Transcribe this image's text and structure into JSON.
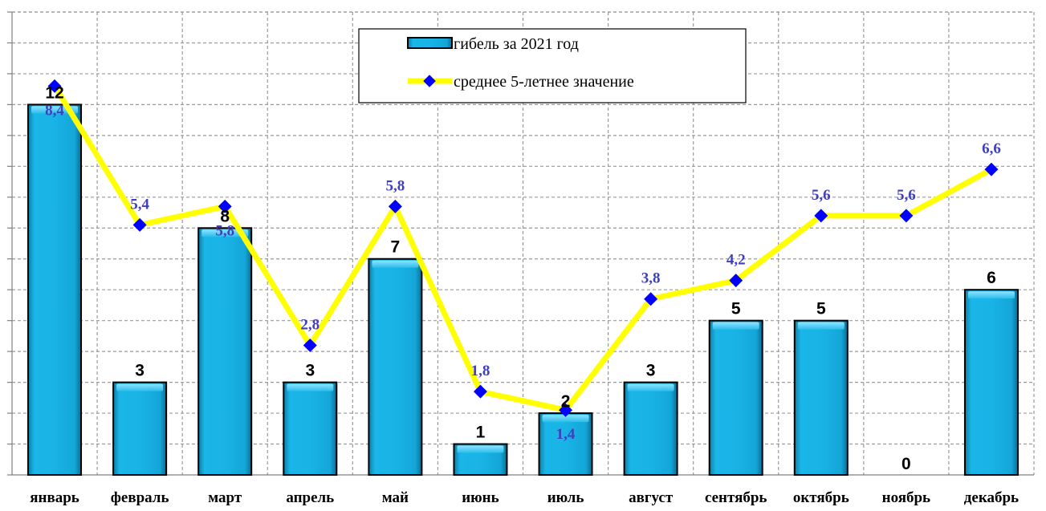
{
  "chart_data": {
    "type": "bar",
    "categories": [
      "январь",
      "февраль",
      "март",
      "апрель",
      "май",
      "июнь",
      "июль",
      "август",
      "сентябрь",
      "октябрь",
      "ноябрь",
      "декабрь"
    ],
    "series": [
      {
        "name": "гибель за 2021 год",
        "type": "bar",
        "values": [
          12,
          3,
          8,
          3,
          7,
          1,
          2,
          3,
          5,
          5,
          0,
          6
        ],
        "labels": [
          "12",
          "3",
          "8",
          "3",
          "7",
          "1",
          "2",
          "3",
          "5",
          "5",
          "0",
          "6"
        ],
        "color": "#19B3E6"
      },
      {
        "name": "среднее 5-летнее значение",
        "type": "line",
        "values": [
          8.4,
          5.4,
          5.8,
          2.8,
          5.8,
          1.8,
          1.4,
          3.8,
          4.2,
          5.6,
          5.6,
          6.6
        ],
        "labels": [
          "8,4",
          "5,4",
          "5,8",
          "2,8",
          "5,8",
          "1,8",
          "1,4",
          "3,8",
          "4,2",
          "5,6",
          "5,6",
          "6,6"
        ],
        "color": "#FFFF00",
        "marker_color": "#0000FF",
        "label_color": "#3F3FBF"
      }
    ],
    "ylim": [
      0,
      15
    ],
    "y2lim": [
      0,
      10
    ],
    "grid": true,
    "legend": "top-center"
  }
}
